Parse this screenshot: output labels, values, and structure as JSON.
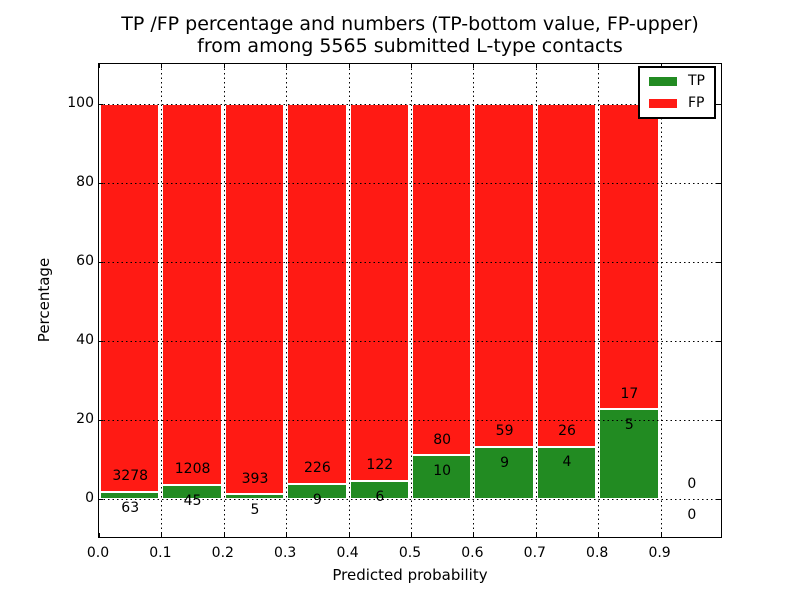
{
  "title": {
    "line1": "TP /FP percentage and numbers (TP-bottom value, FP-upper)",
    "line2": "from among 5565 submitted L-type contacts"
  },
  "axes": {
    "xlabel": "Predicted probability",
    "ylabel": "Percentage",
    "xtick_labels": [
      "0.0",
      "0.1",
      "0.2",
      "0.3",
      "0.4",
      "0.5",
      "0.6",
      "0.7",
      "0.8",
      "0.9"
    ],
    "ytick_labels": [
      "0",
      "20",
      "40",
      "60",
      "80",
      "100"
    ]
  },
  "legend": {
    "items": [
      {
        "label": "TP",
        "color": "#228b22"
      },
      {
        "label": "FP",
        "color": "#ff1a14"
      }
    ]
  },
  "colors": {
    "tp_green": "#228b22",
    "fp_red": "#ff1a14",
    "bar_edge": "#ffffff",
    "grid": "#000000",
    "text": "#000000",
    "background": "#ffffff"
  },
  "chart_data": {
    "type": "bar",
    "stacked": true,
    "normalized": "percent",
    "title": "TP /FP percentage and numbers (TP-bottom value, FP-upper) from among 5565 submitted L-type contacts",
    "xlabel": "Predicted probability",
    "ylabel": "Percentage",
    "xlim": [
      0.0,
      1.0
    ],
    "ylim": [
      -10,
      110
    ],
    "xticks": [
      0.0,
      0.1,
      0.2,
      0.3,
      0.4,
      0.5,
      0.6,
      0.7,
      0.8,
      0.9
    ],
    "yticks": [
      0,
      20,
      40,
      60,
      80,
      100
    ],
    "grid": "dotted",
    "legend_position": "upper right",
    "bin_width": 0.1,
    "categories": [
      "0.0-0.1",
      "0.1-0.2",
      "0.2-0.3",
      "0.3-0.4",
      "0.4-0.5",
      "0.5-0.6",
      "0.6-0.7",
      "0.7-0.8",
      "0.8-0.9",
      "0.9-1.0"
    ],
    "series": [
      {
        "name": "TP",
        "color": "#228b22",
        "counts": [
          63,
          45,
          5,
          9,
          6,
          10,
          9,
          4,
          5,
          0
        ],
        "percent": [
          1.89,
          3.59,
          1.26,
          3.83,
          4.69,
          11.11,
          13.24,
          13.33,
          22.73,
          0
        ]
      },
      {
        "name": "FP",
        "color": "#ff1a14",
        "counts": [
          3278,
          1208,
          393,
          226,
          122,
          80,
          59,
          26,
          17,
          0
        ],
        "percent": [
          98.11,
          96.41,
          98.74,
          96.17,
          95.31,
          88.89,
          86.76,
          86.67,
          77.27,
          0
        ]
      }
    ],
    "total_contacts": 5565,
    "label_offset_percent": 4
  }
}
